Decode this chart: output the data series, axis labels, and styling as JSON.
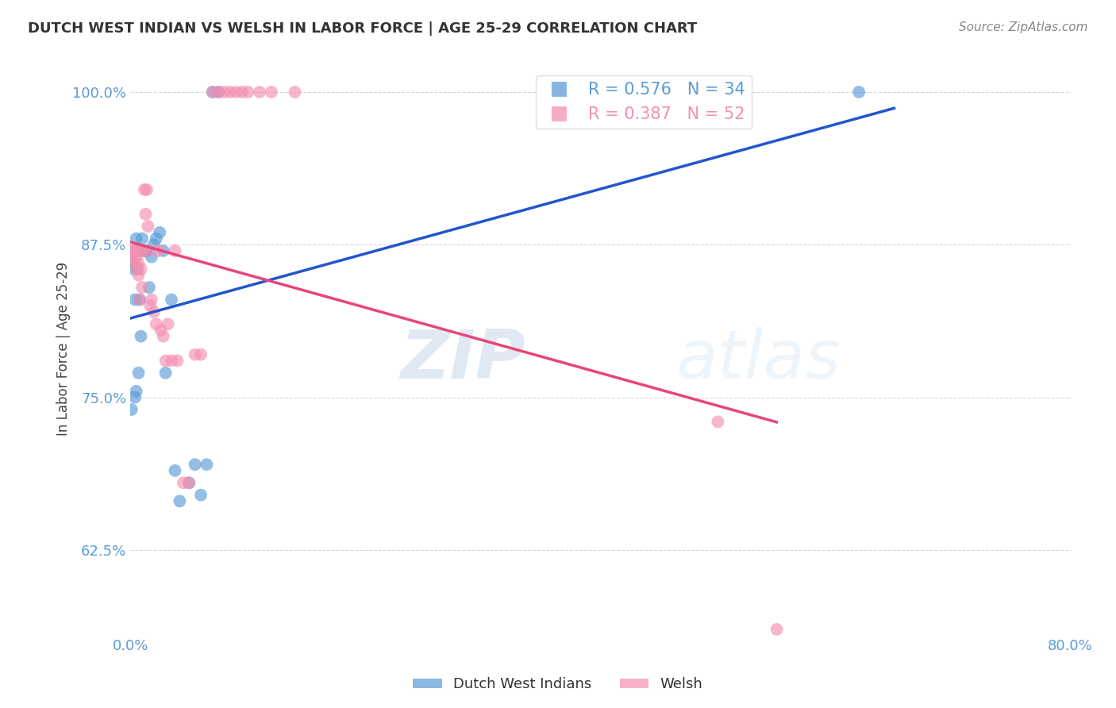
{
  "title": "DUTCH WEST INDIAN VS WELSH IN LABOR FORCE | AGE 25-29 CORRELATION CHART",
  "source": "Source: ZipAtlas.com",
  "xlabel": "",
  "ylabel": "In Labor Force | Age 25-29",
  "xlim": [
    0.0,
    0.8
  ],
  "ylim": [
    0.555,
    1.025
  ],
  "xticks": [
    0.0,
    0.1,
    0.2,
    0.3,
    0.4,
    0.5,
    0.6,
    0.7,
    0.8
  ],
  "xticklabels": [
    "0.0%",
    "",
    "",
    "",
    "",
    "",
    "",
    "",
    "80.0%"
  ],
  "yticks": [
    0.625,
    0.75,
    0.875,
    1.0
  ],
  "yticklabels": [
    "62.5%",
    "75.0%",
    "87.5%",
    "100.0%"
  ],
  "dutch_color": "#5b9bd5",
  "welsh_color": "#f48fb1",
  "dutch_line_color": "#2255cc",
  "welsh_line_color": "#e8457a",
  "dutch_R": 0.576,
  "dutch_N": 34,
  "welsh_R": 0.387,
  "welsh_N": 52,
  "legend_label_dutch": "Dutch West Indians",
  "legend_label_welsh": "Welsh",
  "watermark_zip": "ZIP",
  "watermark_atlas": "atlas",
  "dutch_x": [
    0.001,
    0.002,
    0.002,
    0.003,
    0.004,
    0.004,
    0.005,
    0.005,
    0.006,
    0.006,
    0.007,
    0.008,
    0.009,
    0.01,
    0.011,
    0.013,
    0.014,
    0.016,
    0.018,
    0.02,
    0.022,
    0.025,
    0.028,
    0.03,
    0.035,
    0.038,
    0.042,
    0.05,
    0.055,
    0.06,
    0.065,
    0.07,
    0.075,
    0.62
  ],
  "dutch_y": [
    0.74,
    0.86,
    0.87,
    0.855,
    0.83,
    0.75,
    0.88,
    0.755,
    0.87,
    0.855,
    0.77,
    0.83,
    0.8,
    0.88,
    0.87,
    0.87,
    0.87,
    0.84,
    0.865,
    0.875,
    0.88,
    0.885,
    0.87,
    0.77,
    0.83,
    0.69,
    0.665,
    0.68,
    0.695,
    0.67,
    0.695,
    1.0,
    1.0,
    1.0
  ],
  "welsh_x": [
    0.001,
    0.001,
    0.002,
    0.002,
    0.003,
    0.003,
    0.004,
    0.004,
    0.005,
    0.005,
    0.006,
    0.006,
    0.007,
    0.007,
    0.008,
    0.008,
    0.009,
    0.01,
    0.011,
    0.012,
    0.013,
    0.014,
    0.015,
    0.016,
    0.017,
    0.018,
    0.02,
    0.022,
    0.024,
    0.026,
    0.028,
    0.03,
    0.032,
    0.035,
    0.038,
    0.04,
    0.045,
    0.05,
    0.055,
    0.06,
    0.07,
    0.075,
    0.08,
    0.085,
    0.09,
    0.095,
    0.1,
    0.11,
    0.12,
    0.14,
    0.5,
    0.55
  ],
  "welsh_y": [
    0.87,
    0.865,
    0.87,
    0.87,
    0.87,
    0.86,
    0.87,
    0.87,
    0.87,
    0.865,
    0.87,
    0.855,
    0.85,
    0.86,
    0.87,
    0.83,
    0.855,
    0.84,
    0.87,
    0.92,
    0.9,
    0.92,
    0.89,
    0.87,
    0.825,
    0.83,
    0.82,
    0.81,
    0.87,
    0.805,
    0.8,
    0.78,
    0.81,
    0.78,
    0.87,
    0.78,
    0.68,
    0.68,
    0.785,
    0.785,
    1.0,
    1.0,
    1.0,
    1.0,
    1.0,
    1.0,
    1.0,
    1.0,
    1.0,
    1.0,
    0.73,
    0.56
  ]
}
